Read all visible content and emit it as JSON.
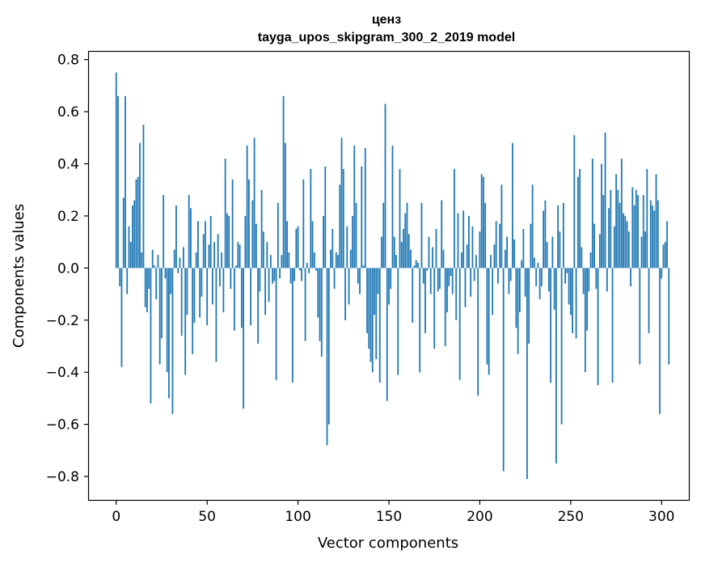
{
  "chart_data": {
    "type": "bar",
    "title": "ценз",
    "subtitle": "tayga_upos_skipgram_300_2_2019 model",
    "xlabel": "Vector components",
    "ylabel": "Components values",
    "xlim": [
      -15,
      315
    ],
    "ylim": [
      -0.89,
      0.83
    ],
    "xticks": [
      0,
      50,
      100,
      150,
      200,
      250,
      300
    ],
    "xtick_labels": [
      "0",
      "50",
      "100",
      "150",
      "200",
      "250",
      "300"
    ],
    "yticks": [
      0.8,
      0.6,
      0.4,
      0.2,
      0.0,
      -0.2,
      -0.4,
      -0.6,
      -0.8
    ],
    "ytick_labels": [
      "0.8",
      "0.6",
      "0.4",
      "0.2",
      "0.0",
      "−0.2",
      "−0.4",
      "−0.6",
      "−0.8"
    ],
    "bar_color": "#1f77b4",
    "series": [
      {
        "name": "ценз",
        "x_start": 0,
        "values": [
          0.75,
          0.66,
          -0.07,
          -0.38,
          0.27,
          0.66,
          -0.1,
          0.16,
          0.1,
          0.24,
          0.26,
          0.34,
          0.35,
          0.48,
          0.06,
          0.55,
          -0.15,
          -0.17,
          -0.08,
          -0.52,
          0.07,
          0.01,
          -0.12,
          0.05,
          -0.37,
          -0.27,
          0.28,
          -0.04,
          -0.4,
          -0.5,
          -0.1,
          -0.56,
          0.07,
          0.24,
          -0.02,
          0.04,
          -0.26,
          0.08,
          -0.41,
          -0.18,
          0.28,
          0.23,
          -0.33,
          -0.21,
          0.06,
          0.18,
          -0.19,
          -0.11,
          0.13,
          0.18,
          -0.22,
          0.09,
          0.2,
          -0.14,
          0.1,
          -0.36,
          0.13,
          -0.07,
          0.06,
          -0.17,
          0.42,
          0.21,
          0.2,
          -0.08,
          0.34,
          -0.24,
          0.01,
          0.1,
          0.09,
          -0.23,
          -0.54,
          0.2,
          0.47,
          0.34,
          -0.22,
          0.26,
          0.5,
          0.17,
          -0.29,
          -0.09,
          0.3,
          0.14,
          -0.18,
          0.1,
          -0.13,
          0.05,
          -0.06,
          -0.05,
          -0.43,
          0.25,
          -0.04,
          0.05,
          0.66,
          0.48,
          0.18,
          0.06,
          -0.06,
          -0.44,
          -0.05,
          0.15,
          0.16,
          -0.01,
          -0.05,
          0.34,
          -0.28,
          0.02,
          -0.02,
          0.38,
          0.18,
          0.06,
          -0.01,
          -0.19,
          -0.28,
          -0.34,
          0.2,
          0.39,
          -0.68,
          -0.6,
          0.07,
          0.15,
          -0.08,
          0.06,
          0.05,
          0.32,
          0.5,
          0.38,
          -0.2,
          0.16,
          -0.14,
          0.07,
          0.2,
          0.47,
          0.25,
          -0.06,
          -0.1,
          0.39,
          0.01,
          0.46,
          -0.25,
          -0.31,
          -0.36,
          -0.4,
          -0.18,
          -0.35,
          -0.1,
          -0.44,
          0.12,
          0.25,
          0.63,
          -0.51,
          -0.14,
          -0.08,
          0.47,
          0.12,
          0.05,
          -0.41,
          0.38,
          0.1,
          0.15,
          0.21,
          0.25,
          0.13,
          0.07,
          -0.21,
          0.01,
          0.03,
          0.02,
          -0.4,
          0.25,
          -0.06,
          -0.25,
          -0.01,
          0.12,
          -0.1,
          0.08,
          -0.31,
          0.15,
          -0.09,
          -0.08,
          0.26,
          0.07,
          -0.3,
          -0.17,
          -0.07,
          -0.03,
          -0.1,
          0.38,
          -0.2,
          0.21,
          -0.43,
          0.06,
          0.22,
          -0.15,
          0.09,
          0.2,
          -0.11,
          0.16,
          -0.05,
          0.05,
          -0.49,
          0.14,
          0.36,
          0.35,
          0.25,
          -0.37,
          -0.41,
          0.05,
          -0.18,
          0.09,
          0.18,
          -0.06,
          0.17,
          0.32,
          -0.78,
          0.07,
          0.12,
          -0.1,
          -0.05,
          0.48,
          0.11,
          -0.23,
          -0.33,
          -0.17,
          0.03,
          0.15,
          -0.11,
          -0.81,
          -0.29,
          0.17,
          0.32,
          0.04,
          -0.07,
          0.02,
          -0.12,
          -0.07,
          0.22,
          0.26,
          0.1,
          -0.09,
          -0.44,
          0.12,
          -0.16,
          -0.75,
          0.24,
          0.14,
          -0.6,
          0.25,
          -0.06,
          -0.02,
          -0.14,
          -0.18,
          -0.25,
          0.51,
          -0.27,
          0.35,
          0.38,
          0.08,
          -0.1,
          -0.4,
          -0.24,
          -0.09,
          0.06,
          0.42,
          0.17,
          -0.08,
          -0.45,
          0.13,
          0.4,
          0.28,
          0.52,
          -0.09,
          0.23,
          0.3,
          -0.44,
          0.16,
          0.36,
          0.3,
          0.25,
          0.42,
          0.21,
          0.2,
          0.18,
          0.14,
          -0.07,
          0.31,
          0.24,
          0.3,
          0.28,
          -0.37,
          0.12,
          0.28,
          0.14,
          0.38,
          -0.25,
          0.26,
          0.24,
          0.22,
          0.36,
          0.26,
          -0.56,
          -0.04,
          0.09,
          0.1,
          0.18,
          -0.37
        ]
      }
    ]
  }
}
